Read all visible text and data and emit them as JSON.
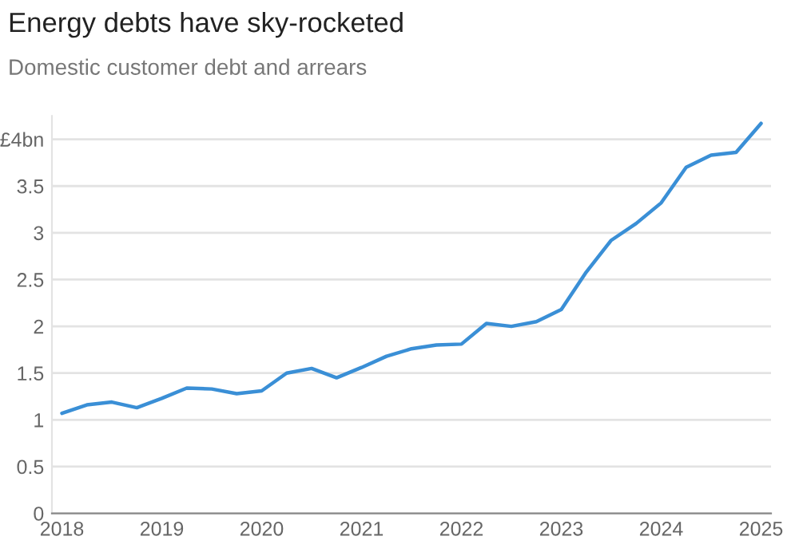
{
  "chart_data": {
    "type": "line",
    "title": "Energy debts have sky-rocketed",
    "subtitle": "Domestic customer debt and arrears",
    "x": [
      2018,
      2018.25,
      2018.5,
      2018.75,
      2019,
      2019.25,
      2019.5,
      2019.75,
      2020,
      2020.25,
      2020.5,
      2020.75,
      2021,
      2021.25,
      2021.5,
      2021.75,
      2022,
      2022.25,
      2022.5,
      2022.75,
      2023,
      2023.25,
      2023.5,
      2023.75,
      2024,
      2024.25,
      2024.5,
      2024.75,
      2025
    ],
    "series": [
      {
        "color": "#3a8fd6",
        "values": [
          1.07,
          1.16,
          1.19,
          1.13,
          1.23,
          1.34,
          1.33,
          1.28,
          1.31,
          1.5,
          1.55,
          1.45,
          1.56,
          1.68,
          1.76,
          1.8,
          1.81,
          2.03,
          2.0,
          2.05,
          2.18,
          2.58,
          2.92,
          3.1,
          3.32,
          3.7,
          3.83,
          3.86,
          4.17
        ]
      }
    ],
    "xlim": [
      2017.9,
      2025.1
    ],
    "xticks": [
      2018,
      2019,
      2020,
      2021,
      2022,
      2023,
      2024,
      2025
    ],
    "ylim": [
      0,
      4.25
    ],
    "yticks": [
      0,
      0.5,
      1,
      1.5,
      2,
      2.5,
      3,
      3.5,
      {
        "value": 4,
        "label": "£4bn"
      }
    ],
    "grid": "y",
    "legend": false,
    "marker": "none",
    "line_style": "solid"
  }
}
